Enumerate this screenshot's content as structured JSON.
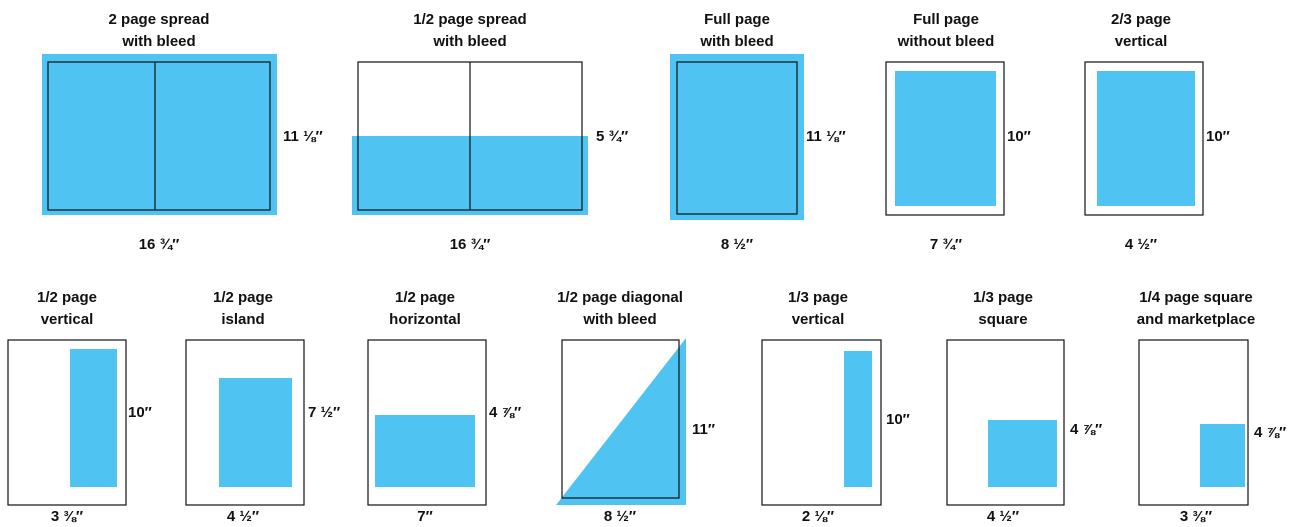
{
  "items": [
    {
      "title": [
        "2 page spread",
        "with bleed"
      ],
      "width": "16 ¾″",
      "height": "11 ⅛″"
    },
    {
      "title": [
        "1/2 page spread",
        "with bleed"
      ],
      "width": "16 ¾″",
      "height": "5 ¾″"
    },
    {
      "title": [
        "Full page",
        "with bleed"
      ],
      "width": "8 ½″",
      "height": "11 ⅛″"
    },
    {
      "title": [
        "Full page",
        "without bleed"
      ],
      "width": "7 ¾″",
      "height": "10″"
    },
    {
      "title": [
        "2/3 page",
        "vertical"
      ],
      "width": "4 ½″",
      "height": "10″"
    },
    {
      "title": [
        "1/2 page",
        "vertical"
      ],
      "width": "3 ⅜″",
      "height": "10″"
    },
    {
      "title": [
        "1/2 page",
        "island"
      ],
      "width": "4 ½″",
      "height": "7 ½″"
    },
    {
      "title": [
        "1/2 page",
        "horizontal"
      ],
      "width": "7″",
      "height": "4 ⅞″"
    },
    {
      "title": [
        "1/2 page diagonal",
        "with bleed"
      ],
      "width": "8 ½″",
      "height": "11″"
    },
    {
      "title": [
        "1/3 page",
        "vertical"
      ],
      "width": "2 ⅛″",
      "height": "10″"
    },
    {
      "title": [
        "1/3 page",
        "square"
      ],
      "width": "4 ½″",
      "height": "4 ⅞″"
    },
    {
      "title": [
        "1/4 page square",
        "and marketplace"
      ],
      "width": "3 ⅜″",
      "height": "4 ⅞″"
    }
  ]
}
